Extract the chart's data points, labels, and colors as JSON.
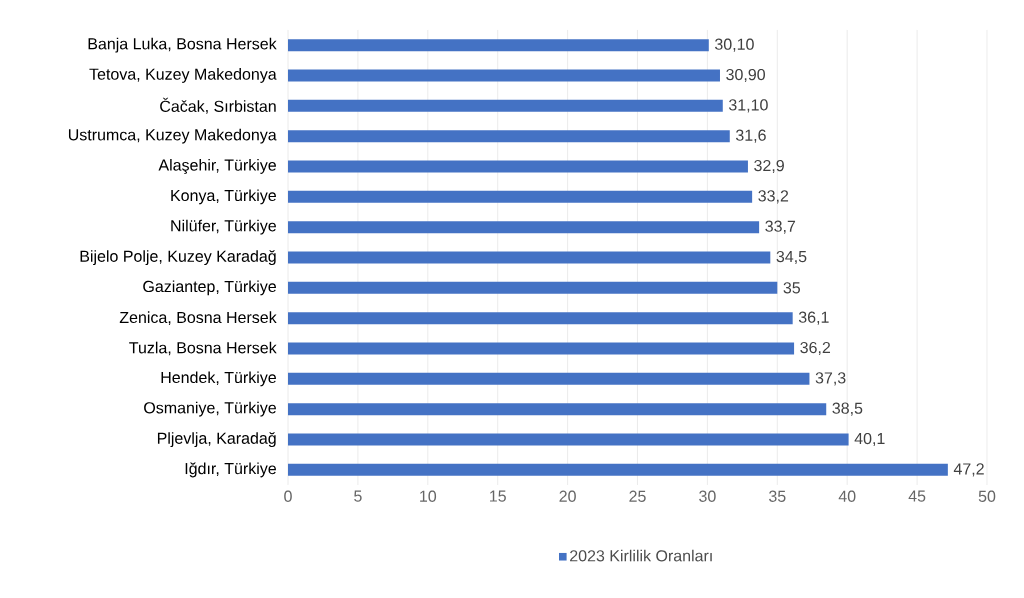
{
  "chart_data": {
    "type": "bar",
    "orientation": "horizontal",
    "categories": [
      "Banja Luka, Bosna Hersek",
      "Tetova, Kuzey Makedonya",
      "Čačak, Sırbistan",
      "Ustrumca, Kuzey Makedonya",
      "Alaşehir, Türkiye",
      "Konya, Türkiye",
      "Nilüfer, Türkiye",
      "Bijelo Polje, Kuzey Karadağ",
      "Gaziantep, Türkiye",
      "Zenica, Bosna Hersek",
      "Tuzla, Bosna Hersek",
      "Hendek, Türkiye",
      "Osmaniye, Türkiye",
      "Pljevlja, Karadağ",
      "Iğdır, Türkiye"
    ],
    "series": [
      {
        "name": "2023 Kirlilik Oranları",
        "color": "#4472c4",
        "values": [
          30.1,
          30.9,
          31.1,
          31.6,
          32.9,
          33.2,
          33.7,
          34.5,
          35,
          36.1,
          36.2,
          37.3,
          38.5,
          40.1,
          47.2
        ],
        "value_labels": [
          "30,10",
          "30,90",
          "31,10",
          "31,6",
          "32,9",
          "33,2",
          "33,7",
          "34,5",
          "35",
          "36,1",
          "36,2",
          "37,3",
          "38,5",
          "40,1",
          "47,2"
        ]
      }
    ],
    "xlim": [
      0,
      50
    ],
    "xticks": [
      0,
      5,
      10,
      15,
      20,
      25,
      30,
      35,
      40,
      45,
      50
    ],
    "grid": "x",
    "legend": "bottom"
  }
}
